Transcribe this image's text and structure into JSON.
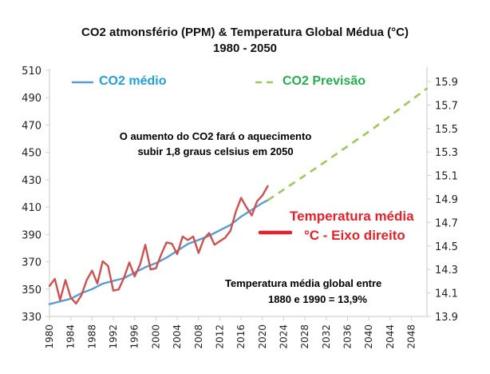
{
  "chart_data": {
    "type": "line",
    "title": "CO2 atmonsfério (PPM) & Temperatura Global Médua (°C)",
    "subtitle": "1980 - 2050",
    "xlabel": "",
    "ylabel_left": "",
    "ylabel_right": "",
    "xlim": [
      1980,
      2051
    ],
    "ylim_left": [
      330,
      510
    ],
    "ylim_right": [
      13.9,
      15.9
    ],
    "grid": false,
    "x_ticks": [
      "1980",
      "1984",
      "1988",
      "1992",
      "1996",
      "2000",
      "2004",
      "2008",
      "2012",
      "2016",
      "2020",
      "2024",
      "2028",
      "2032",
      "2036",
      "2040",
      "2044",
      "2048"
    ],
    "y_left_ticks": [
      "330",
      "350",
      "370",
      "390",
      "410",
      "430",
      "450",
      "470",
      "490",
      "510"
    ],
    "y_right_ticks": [
      "13.9",
      "14.1",
      "14.3",
      "14.5",
      "14.7",
      "14.9",
      "15.1",
      "15.3",
      "15.5",
      "15.7",
      "15.9"
    ],
    "series": [
      {
        "name": "CO2 médio",
        "axis": "left",
        "color": "#5b9bd5",
        "style": "solid",
        "x": [
          1980,
          1982,
          1984,
          1986,
          1988,
          1990,
          1992,
          1994,
          1996,
          1998,
          2000,
          2002,
          2004,
          2006,
          2008,
          2010,
          2012,
          2014,
          2016,
          2018,
          2020,
          2021
        ],
        "values": [
          339,
          341,
          343,
          347,
          350,
          354,
          356,
          358,
          362,
          366,
          369,
          373,
          378,
          383,
          386,
          389,
          393,
          397,
          403,
          408,
          413,
          415
        ]
      },
      {
        "name": "CO2 Previsão",
        "axis": "left",
        "color": "#9bc95a",
        "style": "dashed",
        "x": [
          2021,
          2031,
          2041,
          2051
        ],
        "values": [
          415,
          441,
          468,
          497
        ]
      },
      {
        "name": "Temperatura média °C - Eixo direito",
        "axis": "right",
        "color": "#d0504f",
        "style": "solid",
        "x": [
          1980,
          1981,
          1982,
          1983,
          1984,
          1985,
          1986,
          1987,
          1988,
          1989,
          1990,
          1991,
          1992,
          1993,
          1994,
          1995,
          1996,
          1997,
          1998,
          1999,
          2000,
          2001,
          2002,
          2003,
          2004,
          2005,
          2006,
          2007,
          2008,
          2009,
          2010,
          2011,
          2012,
          2013,
          2014,
          2015,
          2016,
          2017,
          2018,
          2019,
          2020,
          2021
        ],
        "values": [
          14.16,
          14.22,
          14.04,
          14.21,
          14.06,
          14.01,
          14.08,
          14.21,
          14.29,
          14.18,
          14.37,
          14.33,
          14.12,
          14.13,
          14.23,
          14.36,
          14.24,
          14.34,
          14.51,
          14.3,
          14.31,
          14.43,
          14.53,
          14.52,
          14.43,
          14.58,
          14.55,
          14.58,
          14.44,
          14.56,
          14.61,
          14.51,
          14.54,
          14.57,
          14.63,
          14.79,
          14.91,
          14.83,
          14.76,
          14.88,
          14.93,
          15.01
        ]
      }
    ],
    "legend": [
      {
        "label": "CO2 médio",
        "color": "#5b9bd5",
        "text_color": "#1e9fd8",
        "placement": "top-left"
      },
      {
        "label": "CO2 Previsão",
        "color": "#9bc95a",
        "text_color": "#22b04b",
        "placement": "top-right"
      },
      {
        "label": "Temperatura média\n°C - Eixo direito",
        "color": "#e8202a",
        "text_color": "#e8202a",
        "placement": "middle-right"
      }
    ],
    "annotations": [
      "O aumento do CO2 fará o aquecimento subir 1,8 graus celsius em 2050",
      "Temperatura média global entre 1880 e 1990 = 13,9%"
    ]
  },
  "text": {
    "title_line1": "CO2 atmonsfério (PPM) & Temperatura Global Médua (°C)",
    "title_line2": "1980 - 2050",
    "legend_co2": "CO2 médio",
    "legend_forecast": "CO2 Previsão",
    "legend_temp_line1": "Temperatura média",
    "legend_temp_line2": "°C - Eixo direito",
    "annotation1_line1": "O aumento do CO2 fará o aquecimento",
    "annotation1_line2": "subir 1,8 graus celsius em 2050",
    "annotation2_line1": "Temperatura média global entre",
    "annotation2_line2": "1880 e 1990 = 13,9%"
  }
}
